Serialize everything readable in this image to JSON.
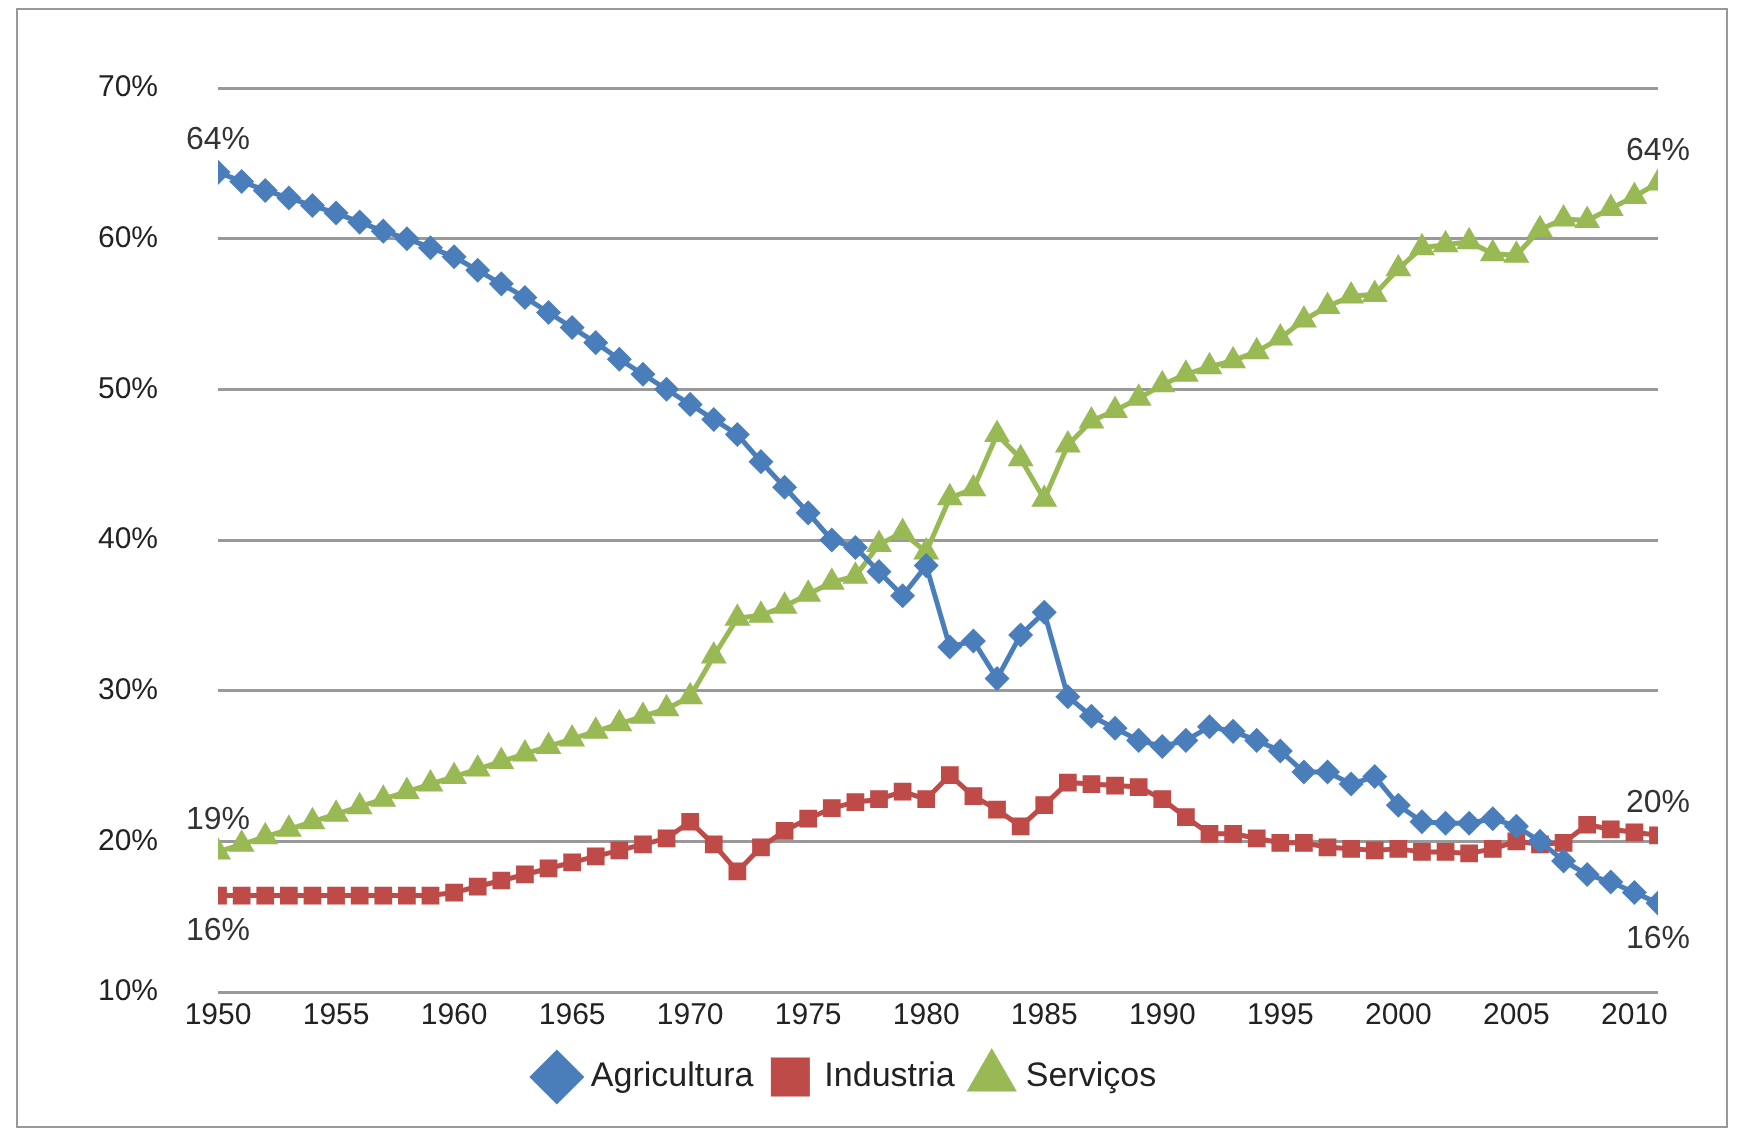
{
  "chart_data": {
    "type": "line",
    "x": [
      1950,
      1951,
      1952,
      1953,
      1954,
      1955,
      1956,
      1957,
      1958,
      1959,
      1960,
      1961,
      1962,
      1963,
      1964,
      1965,
      1966,
      1967,
      1968,
      1969,
      1970,
      1971,
      1972,
      1973,
      1974,
      1975,
      1976,
      1977,
      1978,
      1979,
      1980,
      1981,
      1982,
      1983,
      1984,
      1985,
      1986,
      1987,
      1988,
      1989,
      1990,
      1991,
      1992,
      1993,
      1994,
      1995,
      1996,
      1997,
      1998,
      1999,
      2000,
      2001,
      2002,
      2003,
      2004,
      2005,
      2006,
      2007,
      2008,
      2009,
      2010,
      2011
    ],
    "series": [
      {
        "name": "Agricultura",
        "color": "#4a7ebb",
        "marker": "diamond",
        "values": [
          64.4,
          63.8,
          63.2,
          62.7,
          62.2,
          61.7,
          61.1,
          60.5,
          60.0,
          59.4,
          58.8,
          57.9,
          57.0,
          56.1,
          55.1,
          54.1,
          53.1,
          52.0,
          51.0,
          50.0,
          49.0,
          48.0,
          47.0,
          45.2,
          43.5,
          41.8,
          40.0,
          39.5,
          37.9,
          36.3,
          38.3,
          32.9,
          33.3,
          30.8,
          33.7,
          35.2,
          29.6,
          28.3,
          27.5,
          26.7,
          26.3,
          26.7,
          27.6,
          27.3,
          26.7,
          26.0,
          24.6,
          24.6,
          23.8,
          24.3,
          22.4,
          21.3,
          21.2,
          21.2,
          21.5,
          21.0,
          20.0,
          18.7,
          17.8,
          17.3,
          16.6,
          15.9
        ],
        "value_labels": [
          "64%",
          null,
          null,
          null,
          null,
          null,
          null,
          null,
          null,
          null,
          null,
          null,
          null,
          null,
          null,
          null,
          null,
          null,
          null,
          null,
          null,
          null,
          null,
          null,
          null,
          null,
          null,
          null,
          null,
          null,
          null,
          null,
          null,
          null,
          null,
          null,
          null,
          null,
          null,
          null,
          null,
          null,
          null,
          null,
          null,
          null,
          null,
          null,
          null,
          null,
          null,
          null,
          null,
          null,
          null,
          null,
          null,
          null,
          null,
          null,
          null,
          "16%"
        ]
      },
      {
        "name": "Industria",
        "color": "#be4b48",
        "marker": "square",
        "values": [
          16.4,
          16.4,
          16.4,
          16.4,
          16.4,
          16.4,
          16.4,
          16.4,
          16.4,
          16.4,
          16.6,
          17.0,
          17.4,
          17.8,
          18.2,
          18.6,
          19.0,
          19.4,
          19.8,
          20.2,
          21.3,
          19.8,
          18.0,
          19.6,
          20.7,
          21.5,
          22.2,
          22.6,
          22.8,
          23.3,
          22.8,
          24.4,
          23.0,
          22.1,
          21.0,
          22.4,
          23.9,
          23.8,
          23.7,
          23.6,
          22.8,
          21.6,
          20.5,
          20.5,
          20.2,
          19.9,
          19.9,
          19.6,
          19.5,
          19.4,
          19.5,
          19.3,
          19.3,
          19.2,
          19.5,
          20.0,
          19.8,
          19.9,
          21.1,
          20.8,
          20.6,
          20.4
        ],
        "value_labels": [
          "16%",
          null,
          null,
          null,
          null,
          null,
          null,
          null,
          null,
          null,
          null,
          null,
          null,
          null,
          null,
          null,
          null,
          null,
          null,
          null,
          null,
          null,
          null,
          null,
          null,
          null,
          null,
          null,
          null,
          null,
          null,
          null,
          null,
          null,
          null,
          null,
          null,
          null,
          null,
          null,
          null,
          null,
          null,
          null,
          null,
          null,
          null,
          null,
          null,
          null,
          null,
          null,
          null,
          null,
          null,
          null,
          null,
          null,
          null,
          null,
          null,
          "20%"
        ]
      },
      {
        "name": "Serviços",
        "color": "#98b954",
        "marker": "triangle",
        "values": [
          19.3,
          19.8,
          20.3,
          20.8,
          21.3,
          21.8,
          22.3,
          22.8,
          23.3,
          23.8,
          24.3,
          24.8,
          25.3,
          25.8,
          26.3,
          26.8,
          27.3,
          27.8,
          28.3,
          28.8,
          29.6,
          32.3,
          34.8,
          35.0,
          35.6,
          36.4,
          37.2,
          37.6,
          39.7,
          40.5,
          39.2,
          42.8,
          43.4,
          47.0,
          45.4,
          42.7,
          46.3,
          47.9,
          48.6,
          49.4,
          50.3,
          51.0,
          51.5,
          51.9,
          52.5,
          53.4,
          54.6,
          55.5,
          56.2,
          56.3,
          58.0,
          59.4,
          59.6,
          59.8,
          59.0,
          58.9,
          60.6,
          61.3,
          61.2,
          62.0,
          62.8,
          63.7
        ],
        "value_labels": [
          "19%",
          null,
          null,
          null,
          null,
          null,
          null,
          null,
          null,
          null,
          null,
          null,
          null,
          null,
          null,
          null,
          null,
          null,
          null,
          null,
          null,
          null,
          null,
          null,
          null,
          null,
          null,
          null,
          null,
          null,
          null,
          null,
          null,
          null,
          null,
          null,
          null,
          null,
          null,
          null,
          null,
          null,
          null,
          null,
          null,
          null,
          null,
          null,
          null,
          null,
          null,
          null,
          null,
          null,
          null,
          null,
          null,
          null,
          null,
          null,
          null,
          "64%"
        ]
      }
    ],
    "xlim": [
      1950,
      2011
    ],
    "xticks": [
      1950,
      1955,
      1960,
      1965,
      1970,
      1975,
      1980,
      1985,
      1990,
      1995,
      2000,
      2005,
      2010
    ],
    "ylim": [
      10,
      70
    ],
    "yticks": [
      {
        "value": 10,
        "label": "10%"
      },
      {
        "value": 20,
        "label": "20%"
      },
      {
        "value": 30,
        "label": "30%"
      },
      {
        "value": 40,
        "label": "40%"
      },
      {
        "value": 50,
        "label": "50%"
      },
      {
        "value": 60,
        "label": "60%"
      },
      {
        "value": 70,
        "label": "70%"
      }
    ],
    "grid": "y",
    "legend": "bottom",
    "line_style": "solid"
  }
}
